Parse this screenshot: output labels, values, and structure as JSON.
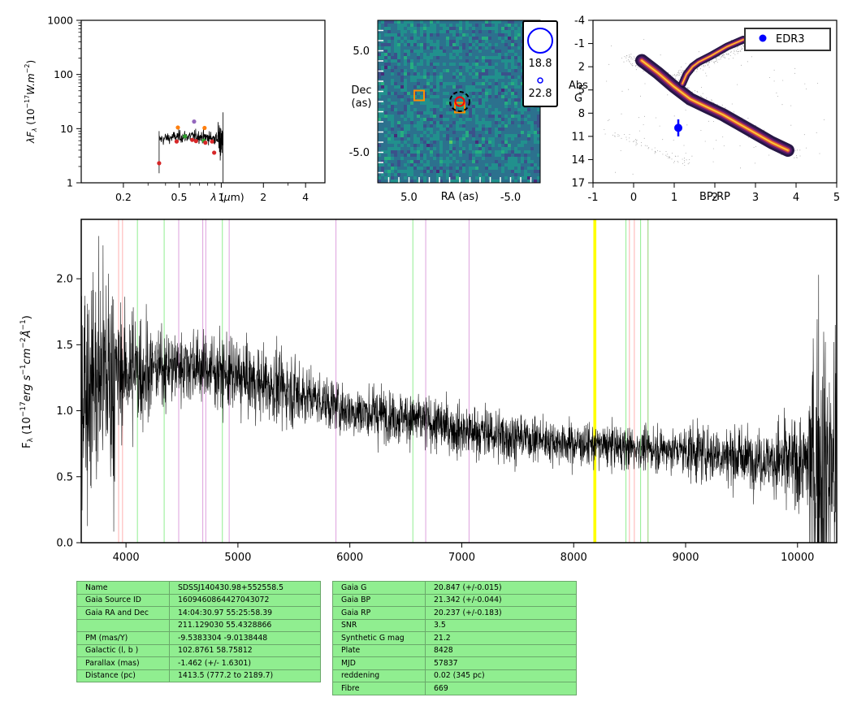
{
  "chart_data": [
    {
      "type": "scatter",
      "panel": "sed",
      "xlabel": "λ (μm)",
      "ylabel": "λF_λ (10^-17 W.m^-2)",
      "x_scale": "log",
      "y_scale": "log",
      "xlim": [
        0.1,
        5.5
      ],
      "ylim": [
        1,
        1000
      ],
      "xticks": [
        "0.2",
        "0.5",
        "1",
        "2",
        "4"
      ],
      "yticks": [
        "1",
        "10",
        "100",
        "1000"
      ],
      "spectrum_range_um": [
        0.36,
        1.03
      ],
      "photometry": [
        {
          "x": 0.36,
          "y": 2.3,
          "color": "#d62728"
        },
        {
          "x": 0.48,
          "y": 5.8,
          "color": "#d62728"
        },
        {
          "x": 0.49,
          "y": 10.5,
          "color": "#ff7f0e"
        },
        {
          "x": 0.55,
          "y": 7.2,
          "color": "#2ca02c"
        },
        {
          "x": 0.62,
          "y": 6.2,
          "color": "#d62728"
        },
        {
          "x": 0.64,
          "y": 13.5,
          "color": "#9467bd"
        },
        {
          "x": 0.66,
          "y": 5.9,
          "color": "#d62728"
        },
        {
          "x": 0.75,
          "y": 6.0,
          "color": "#2ca02c"
        },
        {
          "x": 0.76,
          "y": 10.3,
          "color": "#ff7f0e"
        },
        {
          "x": 0.77,
          "y": 5.5,
          "color": "#d62728"
        },
        {
          "x": 0.86,
          "y": 5.8,
          "color": "#d62728"
        },
        {
          "x": 0.89,
          "y": 3.6,
          "color": "#d62728"
        }
      ]
    },
    {
      "type": "heatmap",
      "panel": "image",
      "xlabel": "RA (as)",
      "ylabel": "Dec (as)",
      "xticks": [
        "5.0",
        "-5.0"
      ],
      "yticks": [
        "5.0",
        "-5.0"
      ],
      "markers": [
        {
          "shape": "square",
          "ra": 4.0,
          "dec": 0.6,
          "color": "#ff8c00"
        },
        {
          "shape": "square",
          "ra": 0.0,
          "dec": -0.6,
          "color": "#ff8c00"
        },
        {
          "shape": "circle",
          "ra": 0.0,
          "dec": 0.0,
          "color": "#ff0000"
        },
        {
          "shape": "dashed-circle",
          "ra": 0.0,
          "dec": 0.0,
          "color": "#000000"
        }
      ],
      "legend": [
        {
          "label": "18.8",
          "size": "large"
        },
        {
          "label": "22.8",
          "size": "small"
        }
      ]
    },
    {
      "type": "scatter",
      "panel": "hr-diagram",
      "xlabel": "BP-RP",
      "ylabel": "Abs G",
      "xlim": [
        -1,
        5
      ],
      "ylim": [
        17,
        -4
      ],
      "xticks": [
        "-1",
        "0",
        "1",
        "2",
        "3",
        "4",
        "5"
      ],
      "yticks": [
        "-4",
        "-1",
        "2",
        "5",
        "8",
        "11",
        "14",
        "17"
      ],
      "legend": "EDR3",
      "legend_position": "top-right",
      "point": {
        "x": 1.1,
        "y": 9.9,
        "yerr": 1.1,
        "color": "#0000ff"
      }
    },
    {
      "type": "line",
      "panel": "spectrum",
      "xlabel": "",
      "ylabel": "F_λ (10^-17 erg s^-1 cm^-2 Å^-1)",
      "xlim": [
        3600,
        10350
      ],
      "ylim": [
        0,
        2.45
      ],
      "xticks": [
        "4000",
        "5000",
        "6000",
        "7000",
        "8000",
        "9000",
        "10000"
      ],
      "yticks": [
        "0.0",
        "0.5",
        "1.0",
        "1.5",
        "2.0"
      ],
      "continuum": [
        {
          "x": 3600,
          "y": 1.2
        },
        {
          "x": 4000,
          "y": 1.3
        },
        {
          "x": 4600,
          "y": 1.35
        },
        {
          "x": 5000,
          "y": 1.25
        },
        {
          "x": 5500,
          "y": 1.15
        },
        {
          "x": 6000,
          "y": 1.0
        },
        {
          "x": 6500,
          "y": 0.95
        },
        {
          "x": 7000,
          "y": 0.85
        },
        {
          "x": 7500,
          "y": 0.8
        },
        {
          "x": 8000,
          "y": 0.75
        },
        {
          "x": 8500,
          "y": 0.72
        },
        {
          "x": 9000,
          "y": 0.7
        },
        {
          "x": 9500,
          "y": 0.65
        },
        {
          "x": 10000,
          "y": 0.6
        },
        {
          "x": 10350,
          "y": 0.6
        }
      ],
      "lines": [
        {
          "x": 3934,
          "color": "#ffb0b0"
        },
        {
          "x": 3969,
          "color": "#ffb0b0"
        },
        {
          "x": 4102,
          "color": "#90ee90"
        },
        {
          "x": 4341,
          "color": "#90ee90"
        },
        {
          "x": 4471,
          "color": "#dda0dd"
        },
        {
          "x": 4686,
          "color": "#dda0dd"
        },
        {
          "x": 4713,
          "color": "#dda0dd"
        },
        {
          "x": 4861,
          "color": "#90ee90"
        },
        {
          "x": 4922,
          "color": "#dda0dd"
        },
        {
          "x": 5876,
          "color": "#dda0dd"
        },
        {
          "x": 6563,
          "color": "#90ee90"
        },
        {
          "x": 6678,
          "color": "#dda0dd"
        },
        {
          "x": 7065,
          "color": "#dda0dd"
        },
        {
          "x": 8183,
          "color": "#ffff00"
        },
        {
          "x": 8195,
          "color": "#ffff00"
        },
        {
          "x": 8467,
          "color": "#90ee90"
        },
        {
          "x": 8498,
          "color": "#ffb0b0"
        },
        {
          "x": 8542,
          "color": "#ffb0b0"
        },
        {
          "x": 8598,
          "color": "#90ee90"
        },
        {
          "x": 8662,
          "color": "#ffb0b0"
        },
        {
          "x": 8665,
          "color": "#90ee90"
        }
      ]
    }
  ],
  "table_left": [
    [
      "Name",
      "SDSSJ140430.98+552558.5"
    ],
    [
      "Gaia Source ID",
      "1609460864427043072"
    ],
    [
      "Gaia RA and Dec",
      "14:04:30.97    55:25:58.39"
    ],
    [
      "",
      "211.129030    55.4328866"
    ],
    [
      "PM (mas/Y)",
      "-9.5383304    -9.0138448"
    ],
    [
      "Galactic (l, b )",
      "102.8761    58.75812"
    ],
    [
      "Parallax (mas)",
      "-1.462 (+/- 1.6301)"
    ],
    [
      "Distance (pc)",
      "1413.5 (777.2 to 2189.7)"
    ]
  ],
  "table_right": [
    [
      "Gaia G",
      "20.847 (+/-0.015)"
    ],
    [
      "Gaia BP",
      "21.342 (+/-0.044)"
    ],
    [
      "Gaia RP",
      "20.237 (+/-0.183)"
    ],
    [
      "SNR",
      "3.5"
    ],
    [
      "Synthetic G mag",
      "21.2"
    ],
    [
      "Plate",
      "8428"
    ],
    [
      "MJD",
      "57837"
    ],
    [
      "reddening",
      "0.02 (345 pc)"
    ],
    [
      "Fibre",
      "669"
    ]
  ]
}
